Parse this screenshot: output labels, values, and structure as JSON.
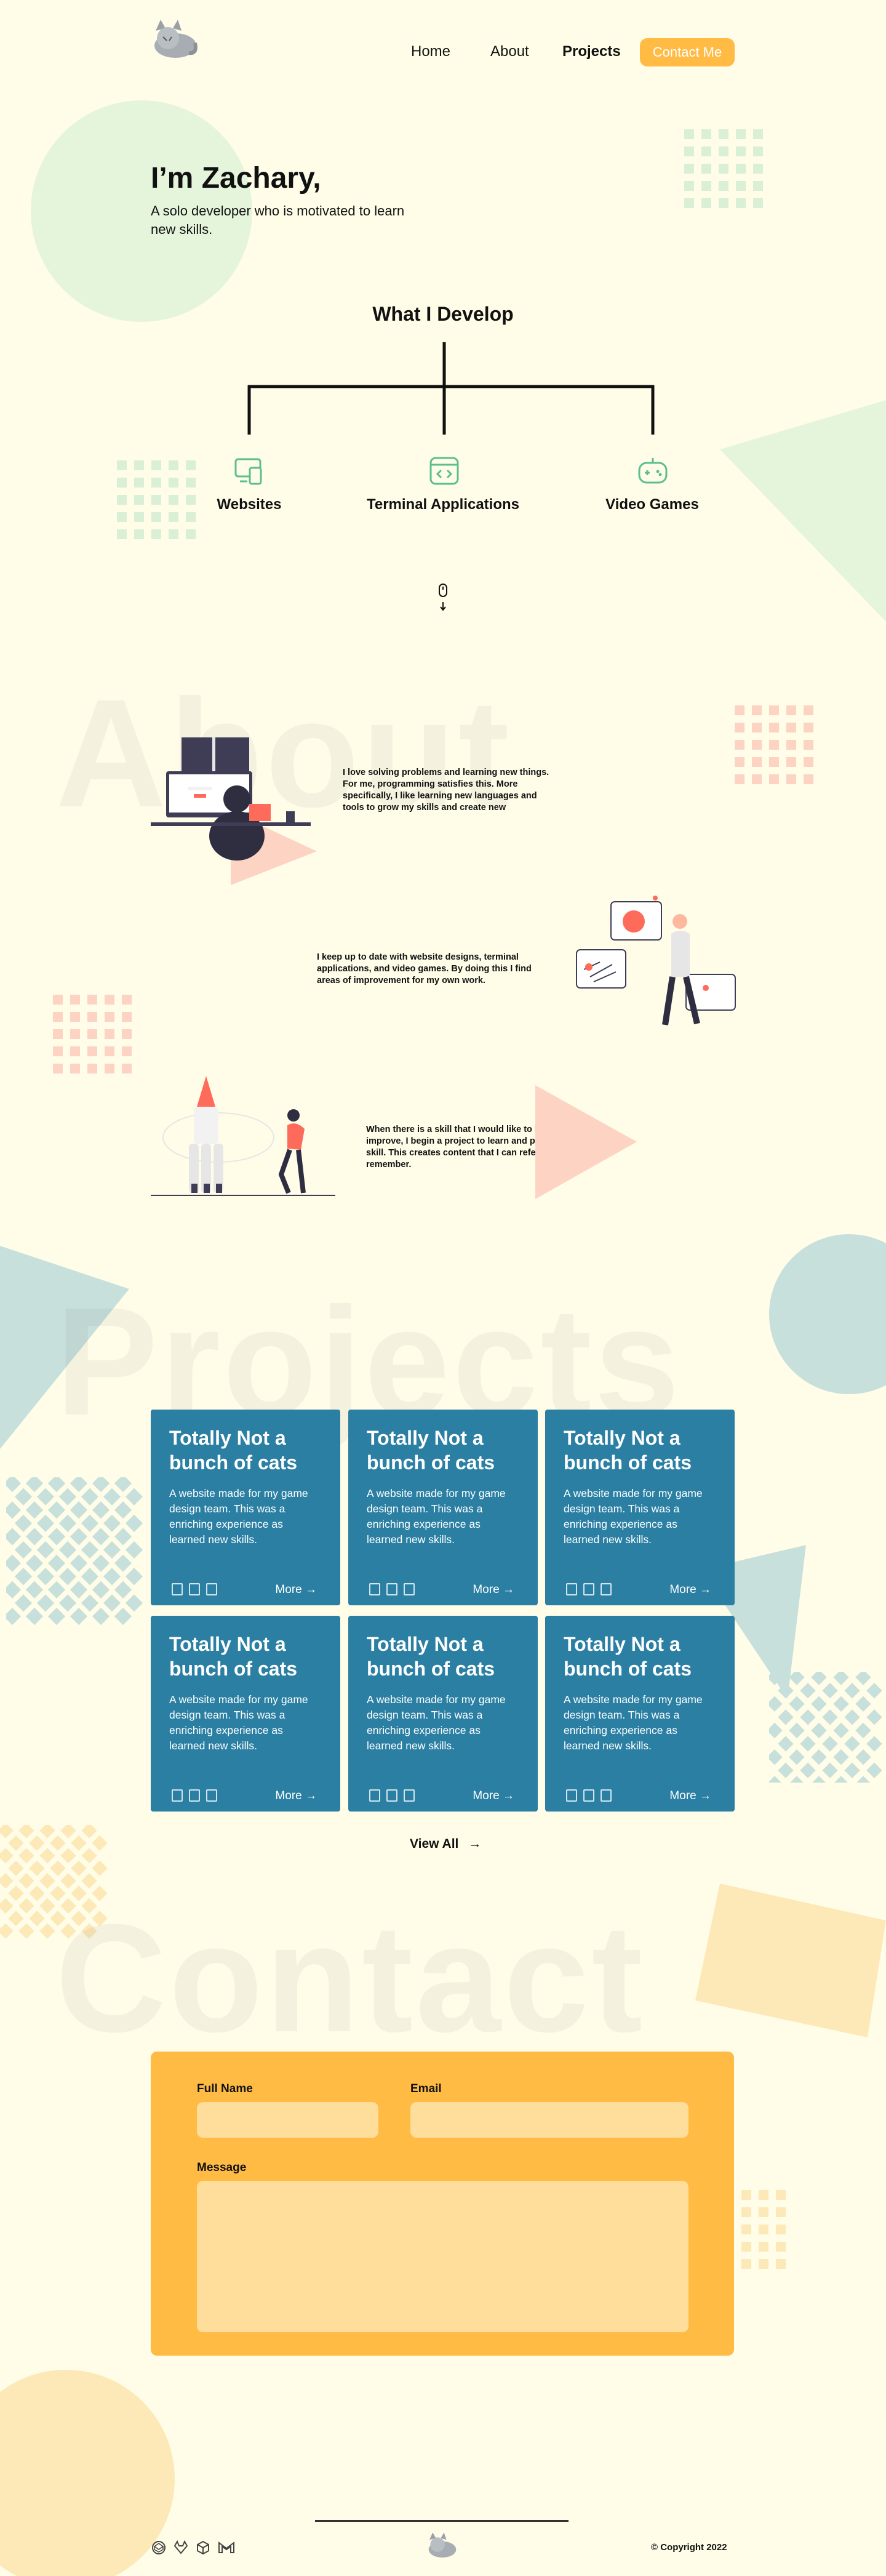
{
  "nav": {
    "links": [
      {
        "label": "Home"
      },
      {
        "label": "About"
      },
      {
        "label": "Projects"
      }
    ],
    "contact_button": "Contact Me"
  },
  "hero": {
    "title": "I’m Zachary,",
    "subtitle": "A solo developer who is motivated to learn new skills."
  },
  "develop": {
    "title": "What I Develop",
    "items": [
      {
        "label": "Websites",
        "icon": "devices-icon"
      },
      {
        "label": "Terminal Applications",
        "icon": "code-window-icon"
      },
      {
        "label": "Video Games",
        "icon": "gamepad-icon"
      }
    ]
  },
  "about": {
    "watermark": "About",
    "paragraphs": [
      "I love solving problems and learning new things. For me, programming satisfies this. More specifically, I like learning new languages and tools to grow my skills and create new",
      "I keep up to date with website designs, terminal applications, and video games. By doing this I find areas of improvement for my own work.",
      "When there is a skill that I would like to learn or improve, I begin a project to learn and practice the skill. This creates content that I can reference and remember."
    ]
  },
  "projects": {
    "watermark": "Projects",
    "cards": [
      {
        "title": "Totally Not a bunch of cats",
        "desc": "A website made for my game design team. This was a enriching experience as learned new skills.",
        "more": "More"
      },
      {
        "title": "Totally Not a bunch of cats",
        "desc": "A website made for my game design team. This was a enriching experience as learned new skills.",
        "more": "More"
      },
      {
        "title": "Totally Not a bunch of cats",
        "desc": "A website made for my game design team. This was a enriching experience as learned new skills.",
        "more": "More"
      },
      {
        "title": "Totally Not a bunch of cats",
        "desc": "A website made for my game design team. This was a enriching experience as learned new skills.",
        "more": "More"
      },
      {
        "title": "Totally Not a bunch of cats",
        "desc": "A website made for my game design team. This was a enriching experience as learned new skills.",
        "more": "More"
      },
      {
        "title": "Totally Not a bunch of cats",
        "desc": "A website made for my game design team. This was a enriching experience as learned new skills.",
        "more": "More"
      }
    ],
    "view_all": "View All"
  },
  "contact": {
    "watermark": "Contact",
    "full_name_label": "Full Name",
    "email_label": "Email",
    "message_label": "Message"
  },
  "footer": {
    "copyright": "© Copyright 2022",
    "social_icons": [
      "codepen-icon",
      "gitlab-icon",
      "codesandbox-icon",
      "gmail-icon"
    ]
  },
  "colors": {
    "background": "#fffde8",
    "accent_orange": "#ffbb44",
    "card_blue": "#2a7fa3",
    "shape_green": "#e5f5dc",
    "shape_pink": "#fdd3c4",
    "shape_teal": "#c8e0dc"
  }
}
